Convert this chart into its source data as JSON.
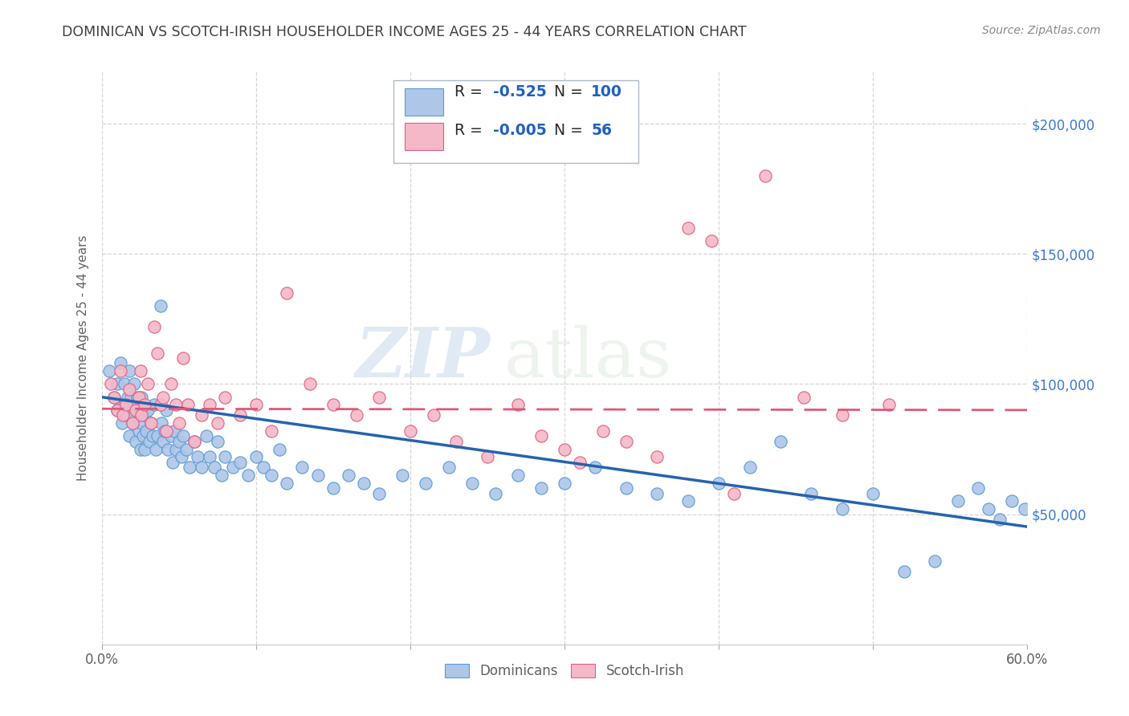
{
  "title": "DOMINICAN VS SCOTCH-IRISH HOUSEHOLDER INCOME AGES 25 - 44 YEARS CORRELATION CHART",
  "source": "Source: ZipAtlas.com",
  "ylabel": "Householder Income Ages 25 - 44 years",
  "watermark": "ZIPatlas",
  "xlim": [
    0.0,
    0.6
  ],
  "ylim": [
    0,
    220000
  ],
  "yticks": [
    0,
    50000,
    100000,
    150000,
    200000
  ],
  "ytick_labels": [
    "",
    "$50,000",
    "$100,000",
    "$150,000",
    "$200,000"
  ],
  "dominican_color": "#aec6e8",
  "dominican_edge": "#5b9bd5",
  "scotch_color": "#f4b8c8",
  "scotch_edge": "#e06080",
  "trend_dominican_color": "#2563ae",
  "trend_scotch_color": "#e05878",
  "R_dominican": -0.525,
  "N_dominican": 100,
  "R_scotch": -0.005,
  "N_scotch": 56,
  "background_color": "#ffffff",
  "grid_color": "#cccccc",
  "title_color": "#404040",
  "axis_label_color": "#606060",
  "right_tick_color": "#3a78d4",
  "legend_label1": "Dominicans",
  "legend_label2": "Scotch-Irish",
  "blue_text_color": "#2060c0",
  "black_text": "#2a2a2a",
  "dom_trend_intercept": 95000,
  "dom_trend_slope": -83000,
  "sco_trend_intercept": 90500,
  "sco_trend_slope": -800,
  "dominican_points_x": [
    0.005,
    0.008,
    0.01,
    0.01,
    0.012,
    0.013,
    0.015,
    0.015,
    0.016,
    0.017,
    0.018,
    0.018,
    0.019,
    0.02,
    0.02,
    0.021,
    0.021,
    0.022,
    0.022,
    0.023,
    0.024,
    0.025,
    0.025,
    0.026,
    0.026,
    0.027,
    0.028,
    0.028,
    0.029,
    0.03,
    0.031,
    0.032,
    0.033,
    0.034,
    0.035,
    0.036,
    0.038,
    0.039,
    0.04,
    0.041,
    0.042,
    0.043,
    0.045,
    0.046,
    0.047,
    0.048,
    0.05,
    0.052,
    0.053,
    0.055,
    0.057,
    0.06,
    0.062,
    0.065,
    0.068,
    0.07,
    0.073,
    0.075,
    0.078,
    0.08,
    0.085,
    0.09,
    0.095,
    0.1,
    0.105,
    0.11,
    0.115,
    0.12,
    0.13,
    0.14,
    0.15,
    0.16,
    0.17,
    0.18,
    0.195,
    0.21,
    0.225,
    0.24,
    0.255,
    0.27,
    0.285,
    0.3,
    0.32,
    0.34,
    0.36,
    0.38,
    0.4,
    0.42,
    0.44,
    0.46,
    0.48,
    0.5,
    0.52,
    0.54,
    0.555,
    0.568,
    0.575,
    0.582,
    0.59,
    0.598
  ],
  "dominican_points_y": [
    105000,
    95000,
    100000,
    90000,
    108000,
    85000,
    100000,
    92000,
    88000,
    95000,
    105000,
    80000,
    95000,
    90000,
    85000,
    100000,
    88000,
    92000,
    78000,
    95000,
    82000,
    90000,
    75000,
    85000,
    95000,
    80000,
    75000,
    88000,
    82000,
    90000,
    78000,
    85000,
    80000,
    92000,
    75000,
    80000,
    130000,
    85000,
    78000,
    82000,
    90000,
    75000,
    80000,
    70000,
    82000,
    75000,
    78000,
    72000,
    80000,
    75000,
    68000,
    78000,
    72000,
    68000,
    80000,
    72000,
    68000,
    78000,
    65000,
    72000,
    68000,
    70000,
    65000,
    72000,
    68000,
    65000,
    75000,
    62000,
    68000,
    65000,
    60000,
    65000,
    62000,
    58000,
    65000,
    62000,
    68000,
    62000,
    58000,
    65000,
    60000,
    62000,
    68000,
    60000,
    58000,
    55000,
    62000,
    68000,
    78000,
    58000,
    52000,
    58000,
    28000,
    32000,
    55000,
    60000,
    52000,
    48000,
    55000,
    52000
  ],
  "scotch_points_x": [
    0.006,
    0.008,
    0.01,
    0.012,
    0.014,
    0.016,
    0.018,
    0.02,
    0.022,
    0.024,
    0.025,
    0.026,
    0.028,
    0.03,
    0.032,
    0.034,
    0.036,
    0.038,
    0.04,
    0.042,
    0.045,
    0.048,
    0.05,
    0.053,
    0.056,
    0.06,
    0.065,
    0.07,
    0.075,
    0.08,
    0.09,
    0.1,
    0.11,
    0.12,
    0.135,
    0.15,
    0.165,
    0.18,
    0.2,
    0.215,
    0.23,
    0.25,
    0.27,
    0.285,
    0.3,
    0.31,
    0.325,
    0.34,
    0.36,
    0.38,
    0.395,
    0.41,
    0.43,
    0.455,
    0.48,
    0.51
  ],
  "scotch_points_y": [
    100000,
    95000,
    90000,
    105000,
    88000,
    92000,
    98000,
    85000,
    90000,
    95000,
    105000,
    88000,
    92000,
    100000,
    85000,
    122000,
    112000,
    92000,
    95000,
    82000,
    100000,
    92000,
    85000,
    110000,
    92000,
    78000,
    88000,
    92000,
    85000,
    95000,
    88000,
    92000,
    82000,
    135000,
    100000,
    92000,
    88000,
    95000,
    82000,
    88000,
    78000,
    72000,
    92000,
    80000,
    75000,
    70000,
    82000,
    78000,
    72000,
    160000,
    155000,
    58000,
    180000,
    95000,
    88000,
    92000
  ]
}
